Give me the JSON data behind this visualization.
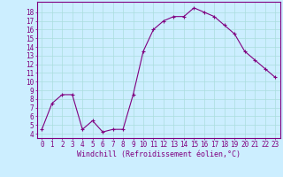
{
  "x": [
    0,
    1,
    2,
    3,
    4,
    5,
    6,
    7,
    8,
    9,
    10,
    11,
    12,
    13,
    14,
    15,
    16,
    17,
    18,
    19,
    20,
    21,
    22,
    23
  ],
  "y": [
    4.5,
    7.5,
    8.5,
    8.5,
    4.5,
    5.5,
    4.2,
    4.5,
    4.5,
    8.5,
    13.5,
    16.0,
    17.0,
    17.5,
    17.5,
    18.5,
    18.0,
    17.5,
    16.5,
    15.5,
    13.5,
    12.5,
    11.5,
    10.5
  ],
  "line_color": "#800080",
  "marker": "+",
  "marker_size": 3,
  "bg_color": "#cceeff",
  "grid_color": "#aadddd",
  "xlabel": "Windchill (Refroidissement éolien,°C)",
  "xlabel_color": "#800080",
  "xlabel_fontsize": 6.0,
  "ylabel_ticks": [
    4,
    5,
    6,
    7,
    8,
    9,
    10,
    11,
    12,
    13,
    14,
    15,
    16,
    17,
    18
  ],
  "ylim": [
    3.5,
    19.2
  ],
  "xlim": [
    -0.5,
    23.5
  ],
  "tick_color": "#800080",
  "tick_fontsize": 5.5,
  "spine_color": "#800080"
}
